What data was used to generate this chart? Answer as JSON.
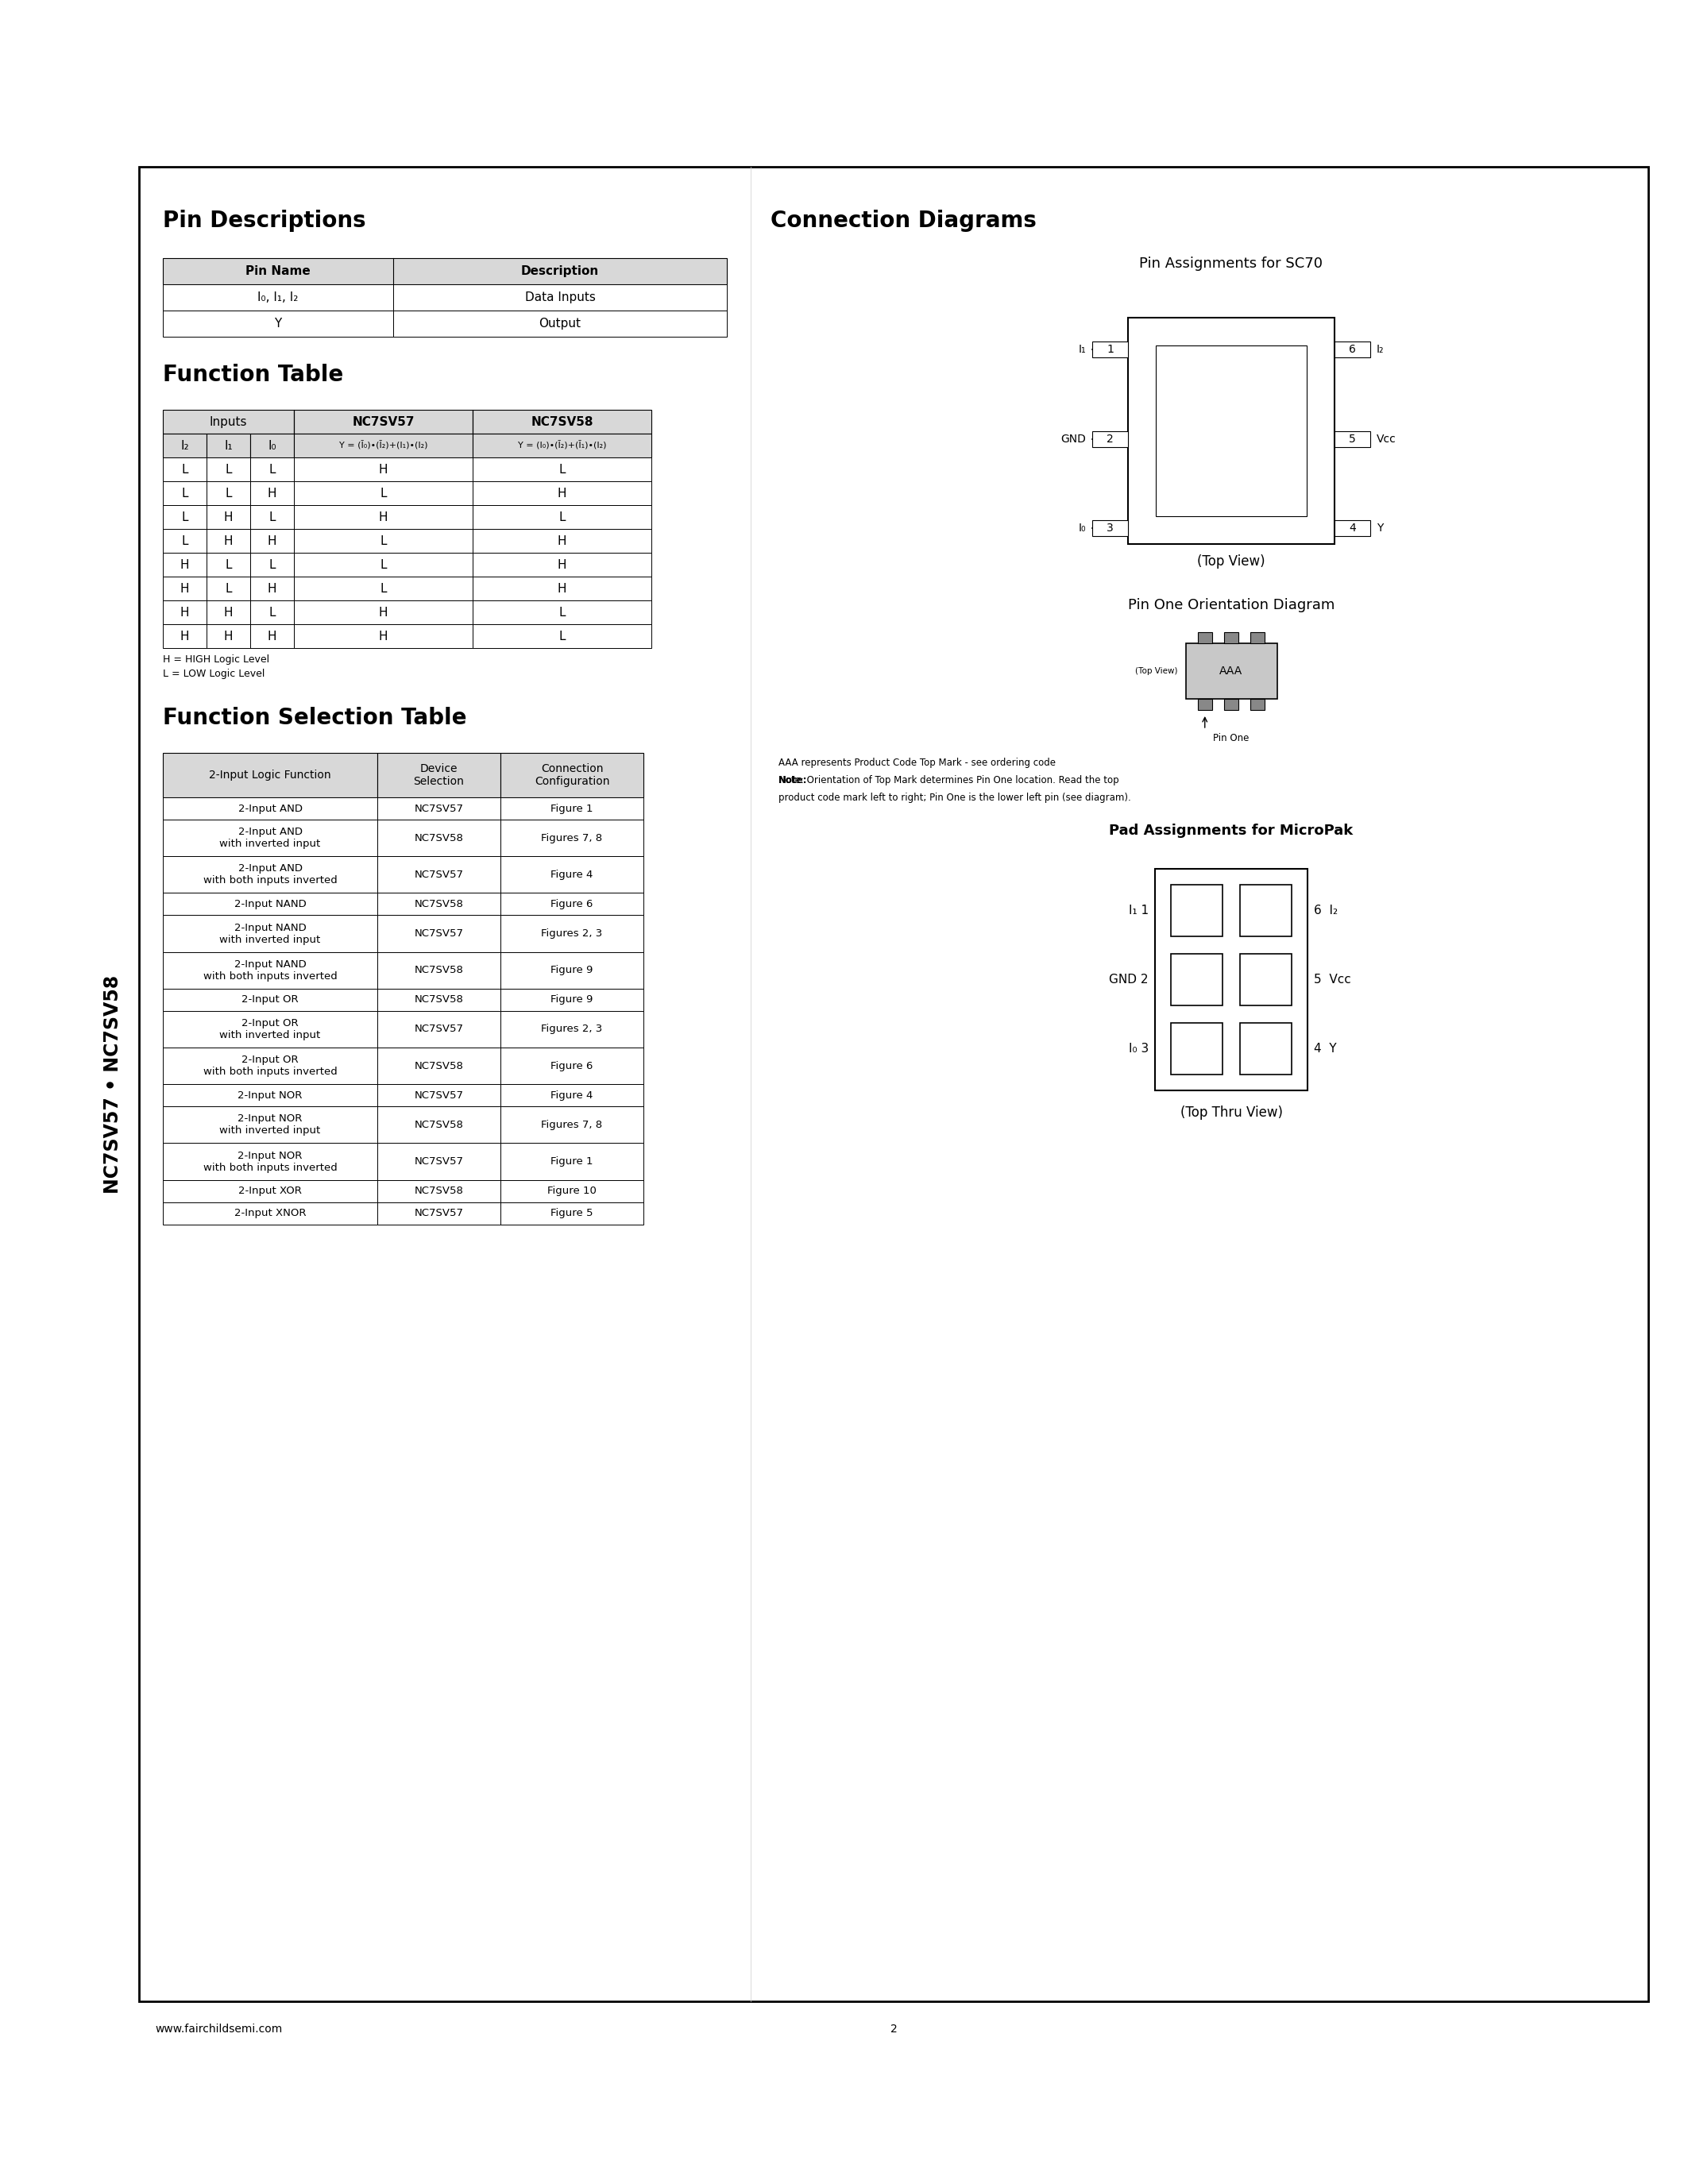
{
  "page_title": "NC7SV57 • NC7SV58",
  "section1_title": "Pin Descriptions",
  "pin_desc_headers": [
    "Pin Name",
    "Description"
  ],
  "pin_desc_rows": [
    [
      "I₀, I₁, I₂",
      "Data Inputs"
    ],
    [
      "Y",
      "Output"
    ]
  ],
  "section2_title": "Function Table",
  "func_table_data": [
    [
      "L",
      "L",
      "L",
      "H",
      "L"
    ],
    [
      "L",
      "L",
      "H",
      "L",
      "H"
    ],
    [
      "L",
      "H",
      "L",
      "H",
      "L"
    ],
    [
      "L",
      "H",
      "H",
      "L",
      "H"
    ],
    [
      "H",
      "L",
      "L",
      "L",
      "H"
    ],
    [
      "H",
      "L",
      "H",
      "L",
      "H"
    ],
    [
      "H",
      "H",
      "L",
      "H",
      "L"
    ],
    [
      "H",
      "H",
      "H",
      "H",
      "L"
    ]
  ],
  "func_table_note1": "H = HIGH Logic Level",
  "func_table_note2": "L = LOW Logic Level",
  "section3_title": "Function Selection Table",
  "fst_rows": [
    [
      "2-Input AND",
      "NC7SV57",
      "Figure 1"
    ],
    [
      "2-Input AND\nwith inverted input",
      "NC7SV58",
      "Figures 7, 8"
    ],
    [
      "2-Input AND\nwith both inputs inverted",
      "NC7SV57",
      "Figure 4"
    ],
    [
      "2-Input NAND",
      "NC7SV58",
      "Figure 6"
    ],
    [
      "2-Input NAND\nwith inverted input",
      "NC7SV57",
      "Figures 2, 3"
    ],
    [
      "2-Input NAND\nwith both inputs inverted",
      "NC7SV58",
      "Figure 9"
    ],
    [
      "2-Input OR",
      "NC7SV58",
      "Figure 9"
    ],
    [
      "2-Input OR\nwith inverted input",
      "NC7SV57",
      "Figures 2, 3"
    ],
    [
      "2-Input OR\nwith both inputs inverted",
      "NC7SV58",
      "Figure 6"
    ],
    [
      "2-Input NOR",
      "NC7SV57",
      "Figure 4"
    ],
    [
      "2-Input NOR\nwith inverted input",
      "NC7SV58",
      "Figures 7, 8"
    ],
    [
      "2-Input NOR\nwith both inputs inverted",
      "NC7SV57",
      "Figure 1"
    ],
    [
      "2-Input XOR",
      "NC7SV58",
      "Figure 10"
    ],
    [
      "2-Input XNOR",
      "NC7SV57",
      "Figure 5"
    ]
  ],
  "conn_diag_title": "Connection Diagrams",
  "sc70_title": "Pin Assignments for SC70",
  "micropak_title": "Pad Assignments for MicroPak",
  "pin_orient_title": "Pin One Orientation Diagram",
  "footer_url": "www.fairchildsemi.com",
  "footer_page": "2",
  "bg_color": "#ffffff"
}
